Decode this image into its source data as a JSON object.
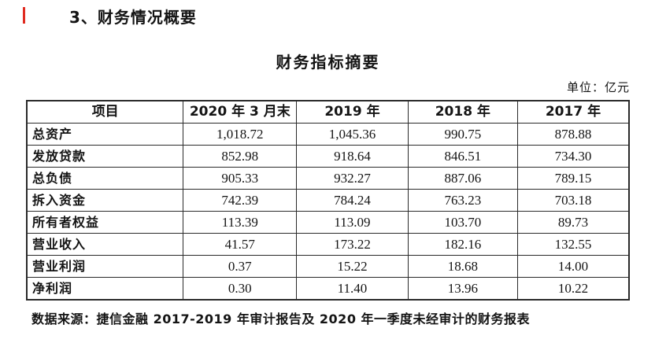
{
  "page": {
    "heading": "3、财务情况概要",
    "table_title": "财务指标摘要",
    "unit_label": "单位：亿元",
    "source_note": "数据来源：捷信金融 2017-2019 年审计报告及 2020 年一季度未经审计的财务报表",
    "accent_color": "#e02b20",
    "border_color": "#2a2a2a"
  },
  "table": {
    "columns": [
      "项目",
      "2020 年 3 月末",
      "2019 年",
      "2018 年",
      "2017 年"
    ],
    "rows": [
      {
        "label": "总资产",
        "values": [
          "1,018.72",
          "1,045.36",
          "990.75",
          "878.88"
        ]
      },
      {
        "label": "发放贷款",
        "values": [
          "852.98",
          "918.64",
          "846.51",
          "734.30"
        ]
      },
      {
        "label": "总负债",
        "values": [
          "905.33",
          "932.27",
          "887.06",
          "789.15"
        ]
      },
      {
        "label": "拆入资金",
        "values": [
          "742.39",
          "784.24",
          "763.23",
          "703.18"
        ]
      },
      {
        "label": "所有者权益",
        "values": [
          "113.39",
          "113.09",
          "103.70",
          "89.73"
        ]
      },
      {
        "label": "营业收入",
        "values": [
          "41.57",
          "173.22",
          "182.16",
          "132.55"
        ]
      },
      {
        "label": "营业利润",
        "values": [
          "0.37",
          "15.22",
          "18.68",
          "14.00"
        ]
      },
      {
        "label": "净利润",
        "values": [
          "0.30",
          "11.40",
          "13.96",
          "10.22"
        ]
      }
    ]
  }
}
